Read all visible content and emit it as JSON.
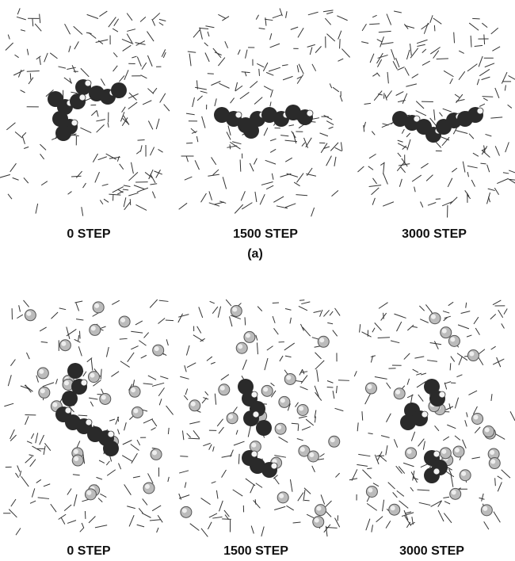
{
  "figure": {
    "rows": [
      {
        "label": "(a)",
        "panels": [
          {
            "caption": "0 STEP"
          },
          {
            "caption": "1500 STEP"
          },
          {
            "caption": "3000 STEP"
          }
        ]
      },
      {
        "panels": [
          {
            "caption": "0 STEP"
          },
          {
            "caption": "1500 STEP"
          },
          {
            "caption": "3000 STEP"
          }
        ]
      }
    ]
  }
}
